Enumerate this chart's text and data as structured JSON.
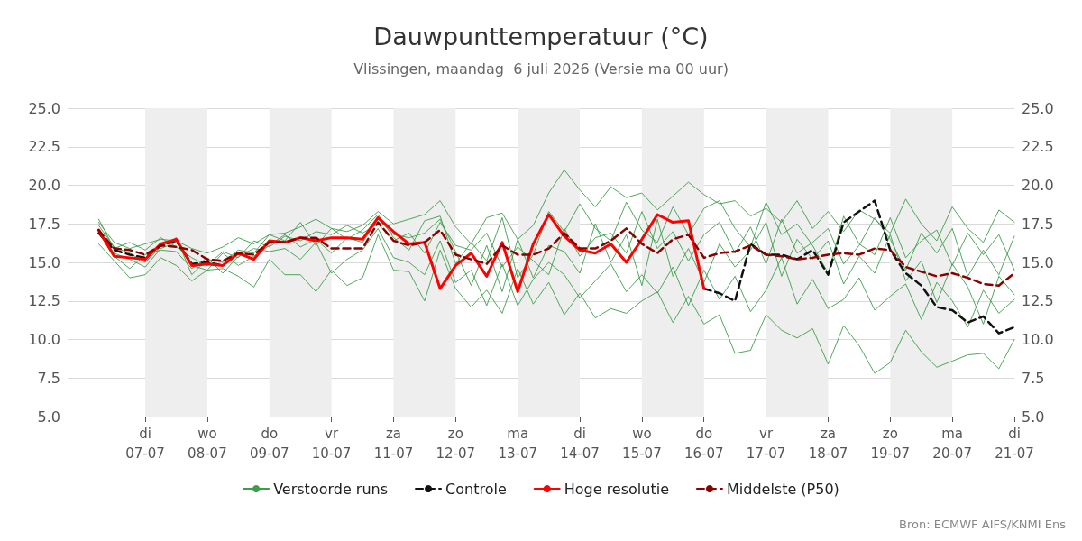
{
  "chart_data": {
    "type": "line",
    "title": "Dauwpunttemperatuur (°C)",
    "subtitle": "Vlissingen, maandag  6 juli 2026 (Versie ma 00 uur)",
    "x": [
      "2026-07-06T06:00",
      "2026-07-06T12:00",
      "2026-07-06T18:00",
      "2026-07-07T00:00",
      "2026-07-07T06:00",
      "2026-07-07T12:00",
      "2026-07-07T18:00",
      "2026-07-08T00:00",
      "2026-07-08T06:00",
      "2026-07-08T12:00",
      "2026-07-08T18:00",
      "2026-07-09T00:00",
      "2026-07-09T06:00",
      "2026-07-09T12:00",
      "2026-07-09T18:00",
      "2026-07-10T00:00",
      "2026-07-10T06:00",
      "2026-07-10T12:00",
      "2026-07-10T18:00",
      "2026-07-11T00:00",
      "2026-07-11T06:00",
      "2026-07-11T12:00",
      "2026-07-11T18:00",
      "2026-07-12T00:00",
      "2026-07-12T06:00",
      "2026-07-12T12:00",
      "2026-07-12T18:00",
      "2026-07-13T00:00",
      "2026-07-13T06:00",
      "2026-07-13T12:00",
      "2026-07-13T18:00",
      "2026-07-14T00:00",
      "2026-07-14T06:00",
      "2026-07-14T12:00",
      "2026-07-14T18:00",
      "2026-07-15T00:00",
      "2026-07-15T06:00",
      "2026-07-15T12:00",
      "2026-07-15T18:00",
      "2026-07-16T00:00",
      "2026-07-16T06:00",
      "2026-07-16T12:00",
      "2026-07-16T18:00",
      "2026-07-17T00:00",
      "2026-07-17T06:00",
      "2026-07-17T12:00",
      "2026-07-17T18:00",
      "2026-07-18T00:00",
      "2026-07-18T06:00",
      "2026-07-18T12:00",
      "2026-07-18T18:00",
      "2026-07-19T00:00",
      "2026-07-19T06:00",
      "2026-07-19T12:00",
      "2026-07-19T18:00",
      "2026-07-20T00:00",
      "2026-07-20T06:00",
      "2026-07-20T12:00",
      "2026-07-20T18:00",
      "2026-07-21T00:00"
    ],
    "series": [
      {
        "name": "Verstoorde runs",
        "color": "#3c9d4a",
        "values": [
          17.6,
          16.3,
          15.9,
          16.2,
          16.5,
          16.4,
          15.9,
          15.6,
          16.0,
          16.6,
          16.2,
          16.8,
          16.9,
          17.3,
          17.8,
          17.2,
          17.0,
          17.4,
          18.3,
          17.5,
          17.8,
          18.1,
          19.0,
          17.3,
          16.2,
          17.9,
          18.2,
          16.5,
          17.4,
          19.5,
          21.0,
          19.7,
          18.6,
          19.9,
          19.2,
          19.5,
          18.4,
          19.3,
          20.2,
          19.4,
          18.8,
          19.0,
          18.0,
          18.5,
          17.6,
          19.0,
          17.2,
          18.3,
          17.0,
          18.4,
          17.8,
          16.9,
          19.1,
          17.5,
          16.4,
          18.6,
          17.2,
          16.3,
          18.4,
          17.6
        ]
      },
      {
        "color": "#3c9d4a",
        "values": [
          16.2,
          15.1,
          14.0,
          14.2,
          15.3,
          14.8,
          13.8,
          14.5,
          14.6,
          14.1,
          13.4,
          15.2,
          14.2,
          14.2,
          13.1,
          14.5,
          13.5,
          14.0,
          16.8,
          14.5,
          14.4,
          12.5,
          15.8,
          13.3,
          12.1,
          13.2,
          11.7,
          14.6,
          12.3,
          13.7,
          11.6,
          13.0,
          11.4,
          12.0,
          11.7,
          12.5,
          13.1,
          11.1,
          12.8,
          11.0,
          11.6,
          9.1,
          9.3,
          11.6,
          10.6,
          10.1,
          10.7,
          8.4,
          10.9,
          9.6,
          7.8,
          8.5,
          10.6,
          9.2,
          8.2,
          8.6,
          9.0,
          9.1,
          8.1,
          10.0
        ]
      },
      {
        "color": "#3c9d4a",
        "values": [
          17.4,
          16.0,
          15.6,
          15.0,
          16.0,
          16.6,
          14.2,
          15.2,
          15.0,
          15.8,
          15.6,
          16.8,
          16.4,
          17.6,
          16.1,
          17.2,
          16.5,
          17.1,
          18.1,
          16.6,
          15.8,
          17.7,
          18.0,
          14.9,
          16.3,
          15.1,
          17.9,
          14.0,
          15.5,
          18.3,
          17.0,
          18.8,
          17.2,
          16.4,
          18.9,
          17.1,
          16.3,
          18.6,
          16.8,
          18.5,
          19.0,
          17.2,
          16.0,
          18.9,
          16.8,
          17.5,
          16.1,
          14.3,
          18.0,
          16.2,
          15.5,
          17.9,
          15.3,
          16.4,
          17.1,
          14.8,
          16.9,
          15.5,
          16.8,
          14.5
        ]
      },
      {
        "color": "#3c9d4a",
        "values": [
          16.9,
          15.4,
          14.6,
          15.5,
          15.8,
          15.7,
          14.6,
          15.3,
          14.3,
          15.4,
          15.9,
          15.7,
          15.9,
          15.2,
          16.3,
          14.3,
          15.2,
          15.8,
          17.2,
          15.3,
          15.0,
          14.2,
          16.4,
          13.7,
          14.5,
          12.2,
          14.9,
          12.2,
          13.9,
          15.0,
          14.2,
          12.7,
          13.8,
          14.9,
          13.1,
          14.2,
          13.0,
          14.7,
          12.2,
          14.5,
          12.6,
          14.1,
          11.8,
          13.2,
          15.3,
          12.3,
          13.9,
          12.0,
          12.6,
          14.0,
          11.9,
          12.8,
          13.6,
          11.3,
          13.7,
          12.5,
          10.8,
          13.2,
          11.7,
          12.6
        ]
      },
      {
        "color": "#3c9d4a",
        "values": [
          17.8,
          15.9,
          16.3,
          15.8,
          16.6,
          16.0,
          15.3,
          14.8,
          15.7,
          15.3,
          16.4,
          16.0,
          16.7,
          16.4,
          17.0,
          16.8,
          17.4,
          16.9,
          17.5,
          16.4,
          16.9,
          15.6,
          17.6,
          16.1,
          15.8,
          16.9,
          14.7,
          16.0,
          15.1,
          14.2,
          17.2,
          15.4,
          16.6,
          16.9,
          15.6,
          18.3,
          15.9,
          17.0,
          15.1,
          16.8,
          17.6,
          15.6,
          17.3,
          14.9,
          17.8,
          15.6,
          16.3,
          17.2,
          14.9,
          16.1,
          17.9,
          16.5,
          14.5,
          16.9,
          15.6,
          17.2,
          14.1,
          15.8,
          14.2,
          16.7
        ]
      },
      {
        "color": "#3c9d4a",
        "values": [
          17.0,
          15.6,
          15.2,
          14.7,
          15.9,
          16.3,
          14.8,
          14.5,
          15.6,
          14.8,
          15.4,
          16.1,
          16.8,
          16.0,
          16.5,
          15.6,
          16.6,
          16.3,
          17.8,
          16.8,
          16.6,
          16.9,
          17.8,
          15.7,
          13.5,
          16.1,
          13.1,
          16.5,
          14.0,
          16.1,
          15.7,
          14.3,
          17.5,
          15.0,
          16.8,
          13.5,
          17.8,
          14.1,
          15.9,
          13.7,
          16.2,
          14.7,
          15.8,
          17.6,
          14.1,
          16.5,
          15.2,
          16.4,
          13.6,
          15.4,
          14.3,
          16.8,
          13.8,
          15.1,
          12.4,
          14.9,
          13.4,
          11.0,
          14.1,
          12.9
        ]
      },
      {
        "name": "Controle",
        "color": "#111111",
        "line_style": "dashed",
        "values": [
          16.9,
          15.8,
          15.5,
          15.3,
          16.1,
          16.4,
          14.9,
          15.0,
          14.8,
          null,
          null,
          null,
          null,
          null,
          null,
          null,
          null,
          null,
          null,
          null,
          null,
          null,
          null,
          null,
          null,
          null,
          null,
          null,
          null,
          null,
          null,
          null,
          null,
          null,
          null,
          null,
          null,
          null,
          null,
          13.3,
          13.0,
          12.5,
          16.2,
          15.5,
          15.5,
          15.2,
          15.8,
          14.2,
          17.6,
          18.3,
          19.0,
          15.8,
          14.3,
          13.5,
          12.1,
          11.9,
          11.1,
          11.5,
          10.4,
          10.8
        ]
      },
      {
        "name": "Hoge resolutie",
        "color": "#ff0000",
        "values": [
          17.1,
          15.4,
          15.3,
          15.2,
          16.2,
          16.5,
          14.8,
          14.9,
          14.8,
          15.6,
          15.2,
          16.4,
          16.3,
          16.6,
          16.4,
          16.6,
          16.6,
          16.5,
          17.9,
          17.0,
          16.2,
          16.3,
          13.3,
          14.8,
          15.6,
          14.1,
          16.3,
          13.1,
          16.2,
          18.1,
          16.7,
          15.8,
          15.6,
          16.2,
          15.0,
          16.5,
          18.1,
          17.6,
          17.7,
          13.3,
          null,
          null,
          null,
          null,
          null,
          null,
          null,
          null,
          null,
          null,
          null,
          null,
          null,
          null,
          null,
          null,
          null,
          null,
          null,
          null
        ]
      },
      {
        "name": "Middelste (P50)",
        "color": "#8b0000",
        "line_style": "dashed",
        "values": [
          17.1,
          15.9,
          15.8,
          15.5,
          16.1,
          16.0,
          15.8,
          15.2,
          15.1,
          15.6,
          15.5,
          16.3,
          16.3,
          16.6,
          16.6,
          15.9,
          15.9,
          15.9,
          17.6,
          16.4,
          16.1,
          16.3,
          17.1,
          15.5,
          15.2,
          14.9,
          16.1,
          15.5,
          15.5,
          15.9,
          16.9,
          15.9,
          15.9,
          16.4,
          17.2,
          16.2,
          15.6,
          16.5,
          16.8,
          15.3,
          15.6,
          15.7,
          16.1,
          15.5,
          15.4,
          15.2,
          15.3,
          15.5,
          15.6,
          15.5,
          15.9,
          15.8,
          14.7,
          14.4,
          14.1,
          14.3,
          14.0,
          13.6,
          13.5,
          14.3
        ]
      }
    ],
    "xlim": [
      "2026-07-05T18:00",
      "2026-07-21T00:00"
    ],
    "xticks": [
      {
        "value": "2026-07-07T00:00",
        "label": "di\n07-07"
      },
      {
        "value": "2026-07-08T00:00",
        "label": "wo\n08-07"
      },
      {
        "value": "2026-07-09T00:00",
        "label": "do\n09-07"
      },
      {
        "value": "2026-07-10T00:00",
        "label": "vr\n10-07"
      },
      {
        "value": "2026-07-11T00:00",
        "label": "za\n11-07"
      },
      {
        "value": "2026-07-12T00:00",
        "label": "zo\n12-07"
      },
      {
        "value": "2026-07-13T00:00",
        "label": "ma\n13-07"
      },
      {
        "value": "2026-07-14T00:00",
        "label": "di\n14-07"
      },
      {
        "value": "2026-07-15T00:00",
        "label": "wo\n15-07"
      },
      {
        "value": "2026-07-16T00:00",
        "label": "do\n16-07"
      },
      {
        "value": "2026-07-17T00:00",
        "label": "vr\n17-07"
      },
      {
        "value": "2026-07-18T00:00",
        "label": "za\n18-07"
      },
      {
        "value": "2026-07-19T00:00",
        "label": "zo\n19-07"
      },
      {
        "value": "2026-07-20T00:00",
        "label": "ma\n20-07"
      },
      {
        "value": "2026-07-21T00:00",
        "label": "di\n21-07"
      }
    ],
    "ylim": [
      5,
      25
    ],
    "yticks": [
      {
        "value": 5,
        "label": "5.0"
      },
      {
        "value": 7.5,
        "label": "7.5"
      },
      {
        "value": 10,
        "label": "10.0"
      },
      {
        "value": 12.5,
        "label": "12.5"
      },
      {
        "value": 15,
        "label": "15.0"
      },
      {
        "value": 17.5,
        "label": "17.5"
      },
      {
        "value": 20,
        "label": "20.0"
      },
      {
        "value": 22.5,
        "label": "22.5"
      },
      {
        "value": 25,
        "label": "25.0"
      }
    ],
    "y2lim": [
      5,
      25
    ],
    "y2ticks": [
      {
        "value": 5,
        "label": "5.0"
      },
      {
        "value": 7.5,
        "label": "7.5"
      },
      {
        "value": 10,
        "label": "10.0"
      },
      {
        "value": 12.5,
        "label": "12.5"
      },
      {
        "value": 15,
        "label": "15.0"
      },
      {
        "value": 17.5,
        "label": "17.5"
      },
      {
        "value": 20,
        "label": "20.0"
      },
      {
        "value": 22.5,
        "label": "22.5"
      },
      {
        "value": 25,
        "label": "25.0"
      }
    ],
    "bands": [
      {
        "axis": "x",
        "from": "2026-07-07T00:00",
        "to": "2026-07-08T00:00",
        "color": "#eeeeee"
      },
      {
        "axis": "x",
        "from": "2026-07-09T00:00",
        "to": "2026-07-10T00:00",
        "color": "#eeeeee"
      },
      {
        "axis": "x",
        "from": "2026-07-11T00:00",
        "to": "2026-07-12T00:00",
        "color": "#eeeeee"
      },
      {
        "axis": "x",
        "from": "2026-07-13T00:00",
        "to": "2026-07-14T00:00",
        "color": "#eeeeee"
      },
      {
        "axis": "x",
        "from": "2026-07-15T00:00",
        "to": "2026-07-16T00:00",
        "color": "#eeeeee"
      },
      {
        "axis": "x",
        "from": "2026-07-17T00:00",
        "to": "2026-07-18T00:00",
        "color": "#eeeeee"
      },
      {
        "axis": "x",
        "from": "2026-07-19T00:00",
        "to": "2026-07-20T00:00",
        "color": "#eeeeee"
      }
    ],
    "annotations": [
      "Bron: ECMWF AIFS/KNMI Ens"
    ],
    "grid": "y",
    "legend": "bottom",
    "marker": "none",
    "line_style": "solid"
  }
}
